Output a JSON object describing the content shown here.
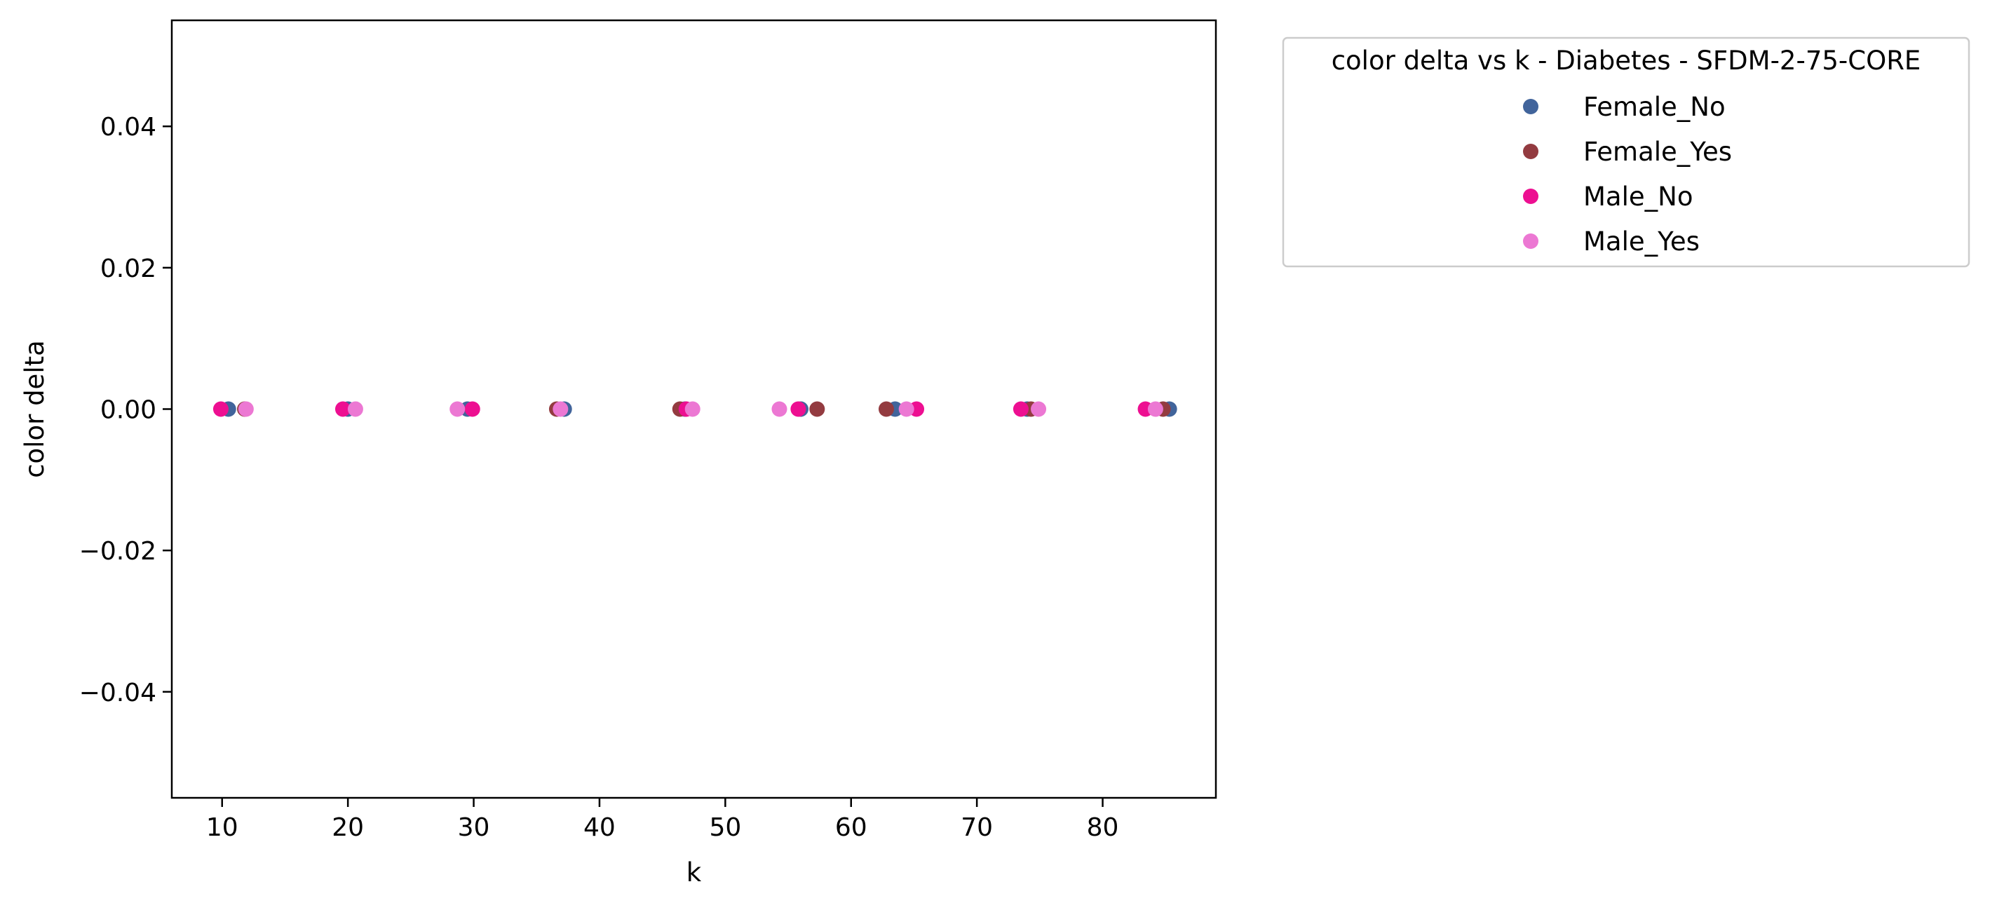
{
  "chart_data": {
    "type": "scatter",
    "title": "",
    "xlabel": "k",
    "ylabel": "color delta",
    "xlim": [
      6.0,
      89.0
    ],
    "ylim": [
      -0.055,
      0.055
    ],
    "xticks": [
      10,
      20,
      30,
      40,
      50,
      60,
      70,
      80
    ],
    "xtick_labels": [
      "10",
      "20",
      "30",
      "40",
      "50",
      "60",
      "70",
      "80"
    ],
    "yticks": [
      0.04,
      0.02,
      0.0,
      -0.02,
      -0.04
    ],
    "ytick_labels": [
      "0.04",
      "0.02",
      "0.00",
      "−0.02",
      "−0.04"
    ],
    "grid": false,
    "legend": {
      "title": "color delta vs k - Diabetes - SFDM-2-75-CORE",
      "placement": "outside-top-right"
    },
    "series": [
      {
        "name": "Female_No",
        "color": "#41649b",
        "points": [
          [
            10.5,
            0
          ],
          [
            20.0,
            0
          ],
          [
            29.5,
            0
          ],
          [
            37.2,
            0
          ],
          [
            46.8,
            0
          ],
          [
            56.0,
            0
          ],
          [
            63.5,
            0
          ],
          [
            74.0,
            0
          ],
          [
            85.3,
            0
          ]
        ]
      },
      {
        "name": "Female_Yes",
        "color": "#933b40",
        "points": [
          [
            11.8,
            0
          ],
          [
            36.6,
            0
          ],
          [
            46.4,
            0
          ],
          [
            57.3,
            0
          ],
          [
            62.8,
            0
          ],
          [
            74.3,
            0
          ],
          [
            84.8,
            0
          ]
        ]
      },
      {
        "name": "Male_No",
        "color": "#ed0f91",
        "points": [
          [
            9.9,
            0
          ],
          [
            19.6,
            0
          ],
          [
            29.9,
            0
          ],
          [
            46.9,
            0
          ],
          [
            55.8,
            0
          ],
          [
            65.2,
            0
          ],
          [
            73.5,
            0
          ],
          [
            83.4,
            0
          ]
        ]
      },
      {
        "name": "Male_Yes",
        "color": "#ec78d3",
        "points": [
          [
            11.9,
            0
          ],
          [
            20.6,
            0
          ],
          [
            28.7,
            0
          ],
          [
            36.9,
            0
          ],
          [
            47.4,
            0
          ],
          [
            54.3,
            0
          ],
          [
            64.4,
            0
          ],
          [
            74.9,
            0
          ],
          [
            84.2,
            0
          ]
        ]
      }
    ]
  }
}
